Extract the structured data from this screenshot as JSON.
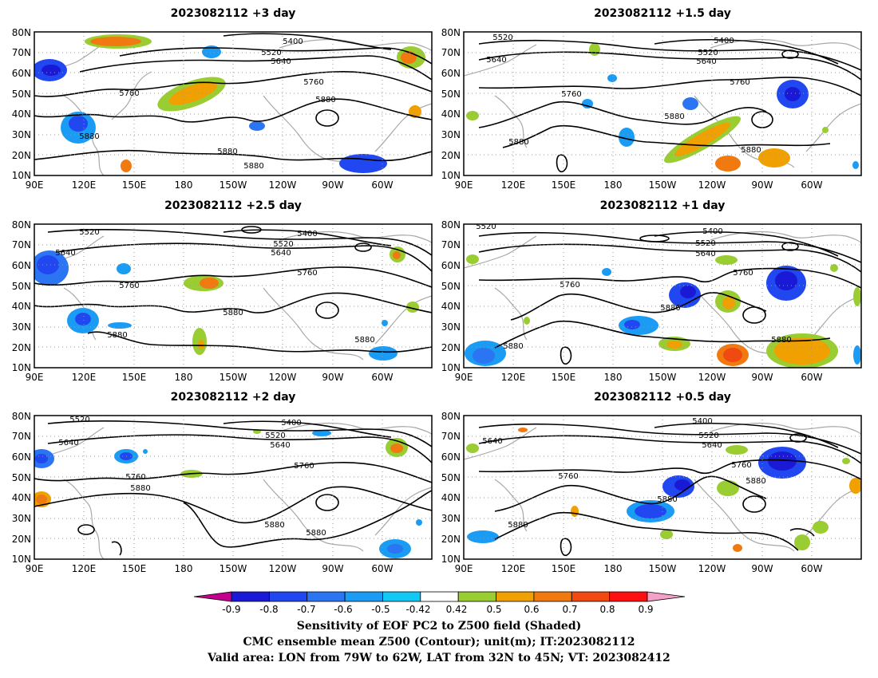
{
  "panels": [
    {
      "title": "2023082112 +3 day"
    },
    {
      "title": "2023082112 +1.5 day"
    },
    {
      "title": "2023082112 +2.5 day"
    },
    {
      "title": "2023082112 +1 day"
    },
    {
      "title": "2023082112 +2 day"
    },
    {
      "title": "2023082112 +0.5 day"
    }
  ],
  "axes": {
    "lon_ticks": [
      "90E",
      "120E",
      "150E",
      "180",
      "150W",
      "120W",
      "90W",
      "60W"
    ],
    "lat_ticks": [
      "80N",
      "70N",
      "60N",
      "50N",
      "40N",
      "30N",
      "20N",
      "10N"
    ]
  },
  "contour_levels": [
    "5400",
    "5520",
    "5640",
    "5760",
    "5880"
  ],
  "colorbar": {
    "labels": [
      "-0.9",
      "-0.8",
      "-0.7",
      "-0.6",
      "-0.5",
      "-0.42",
      "0.42",
      "0.5",
      "0.6",
      "0.7",
      "0.8",
      "0.9"
    ],
    "colors": [
      "#c4008c",
      "#1a1ad6",
      "#2148f0",
      "#2b74f2",
      "#1a9cf5",
      "#12c8f5",
      "#ffffff",
      "#9acd32",
      "#f0a000",
      "#f07a10",
      "#f04a10",
      "#ff1010",
      "#f4a0c8"
    ]
  },
  "caption": {
    "line1": "Sensitivity of EOF PC2 to Z500 field (Shaded)",
    "line2": "CMC ensemble mean Z500 (Contour); unit(m); IT:2023082112",
    "line3": "Valid area: LON from 79W to 62W, LAT from 32N to 45N; VT: 2023082412"
  }
}
